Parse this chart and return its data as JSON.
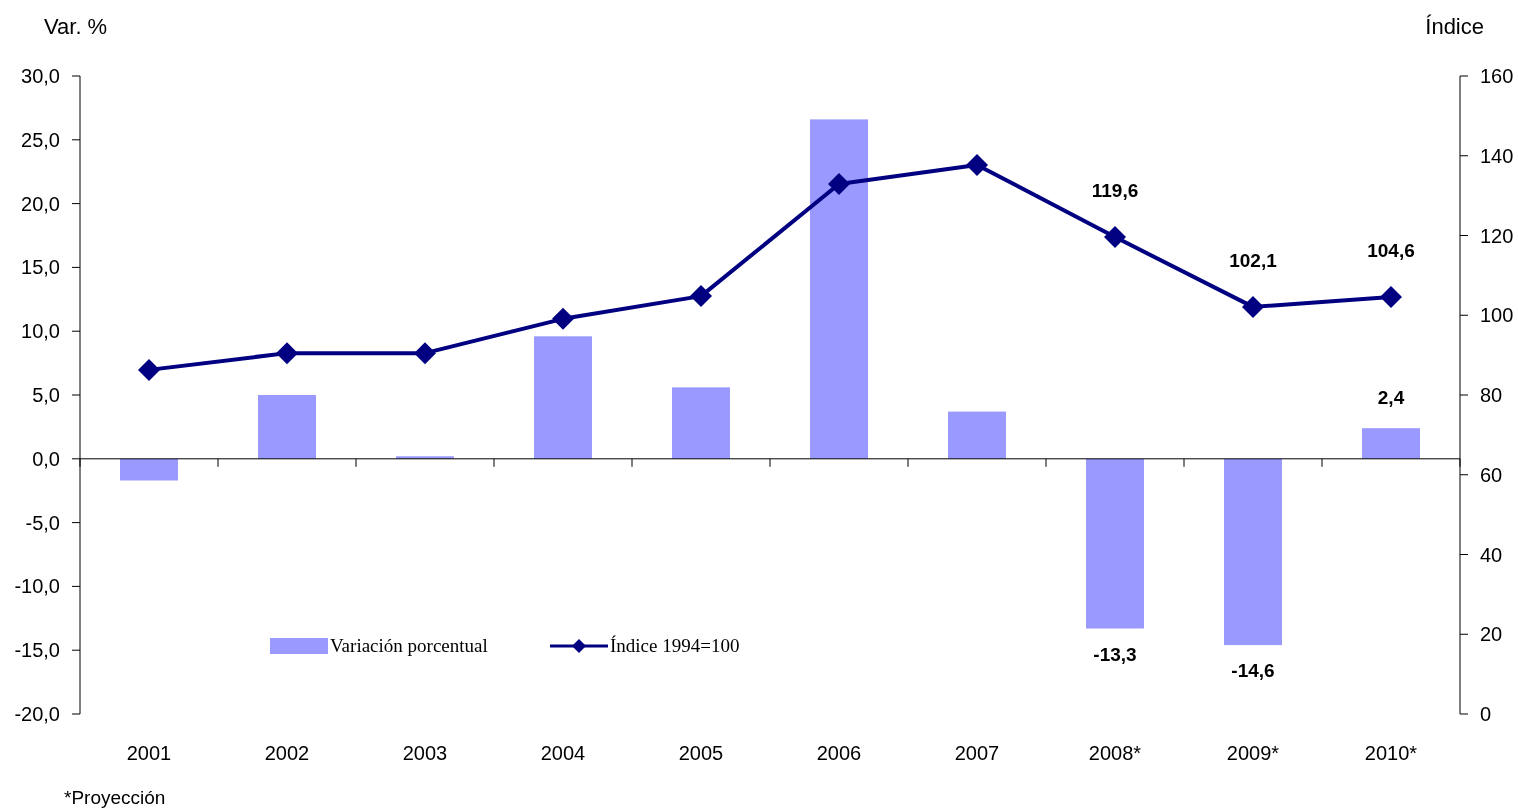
{
  "chart_data": {
    "type": "bar",
    "ylabel": "Var. %",
    "y2label": "Índice",
    "categories": [
      "2001",
      "2002",
      "2003",
      "2004",
      "2005",
      "2006",
      "2007",
      "2008*",
      "2009*",
      "2010*"
    ],
    "series": [
      {
        "name": "Variación porcentual",
        "color": "#9999ff",
        "values": [
          -1.7,
          5.0,
          0.2,
          9.6,
          5.6,
          26.6,
          3.7,
          -13.3,
          -14.6,
          2.4
        ],
        "value_labels": [
          null,
          null,
          null,
          null,
          null,
          null,
          null,
          "-13,3",
          "-14,6",
          "2,4"
        ]
      },
      {
        "name": "Índice 1994=100",
        "type": "line",
        "axis": "y2",
        "color": "#000080",
        "marker": "diamond",
        "values": [
          86.3,
          90.5,
          90.5,
          99.1,
          104.8,
          132.9,
          137.7,
          119.6,
          102.1,
          104.6
        ],
        "value_labels": [
          null,
          null,
          null,
          null,
          null,
          null,
          null,
          "119,6",
          "102,1",
          "104,6"
        ]
      }
    ],
    "ylim": [
      -20,
      30
    ],
    "yticks": [
      {
        "value": -20,
        "label": "-20,0"
      },
      {
        "value": -15,
        "label": "-15,0"
      },
      {
        "value": -10,
        "label": "-10,0"
      },
      {
        "value": -5,
        "label": "-5,0"
      },
      {
        "value": 0,
        "label": "0,0"
      },
      {
        "value": 5,
        "label": "5,0"
      },
      {
        "value": 10,
        "label": "10,0"
      },
      {
        "value": 15,
        "label": "15,0"
      },
      {
        "value": 20,
        "label": "20,0"
      },
      {
        "value": 25,
        "label": "25,0"
      },
      {
        "value": 30,
        "label": "30,0"
      }
    ],
    "y2lim": [
      0,
      160
    ],
    "y2ticks": [
      0,
      20,
      40,
      60,
      80,
      100,
      120,
      140,
      160
    ],
    "legend": "bottom left",
    "annotations": [
      "*Proyección"
    ]
  }
}
